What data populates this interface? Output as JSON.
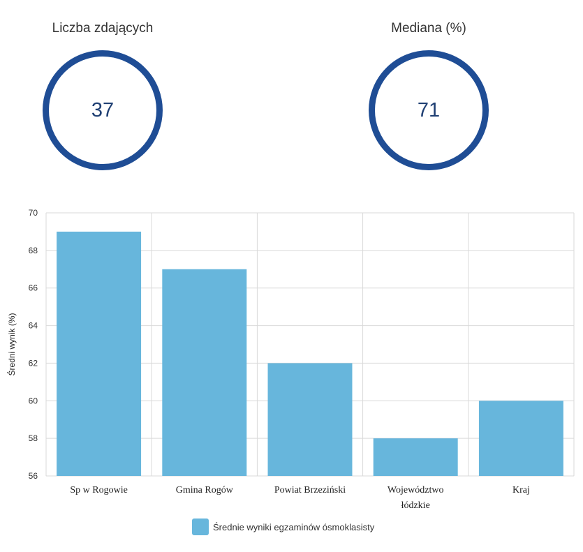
{
  "stats": [
    {
      "label": "Liczba zdających",
      "value": "37"
    },
    {
      "label": "Mediana (%)",
      "value": "71"
    }
  ],
  "colors": {
    "ring": "#1f4d95",
    "bar": "#67b6dc",
    "grid": "#d9d9d9"
  },
  "chart_data": {
    "type": "bar",
    "categories": [
      "Sp w Rogowie",
      "Gmina Rogów",
      "Powiat Brzeziński",
      "Województwo łódzkie",
      "Kraj"
    ],
    "category_lines": [
      [
        "Sp w Rogowie"
      ],
      [
        "Gmina Rogów"
      ],
      [
        "Powiat Brzeziński"
      ],
      [
        "Województwo",
        "łódzkie"
      ],
      [
        "Kraj"
      ]
    ],
    "series": [
      {
        "name": "Średnie wyniki egzaminów ósmoklasisty",
        "values": [
          69,
          67,
          62,
          58,
          60
        ]
      }
    ],
    "ylabel": "Średni wynik (%)",
    "ylim": [
      56,
      70
    ],
    "yticks": [
      56,
      58,
      60,
      62,
      64,
      66,
      68,
      70
    ],
    "grid": true,
    "legend": "bottom"
  }
}
